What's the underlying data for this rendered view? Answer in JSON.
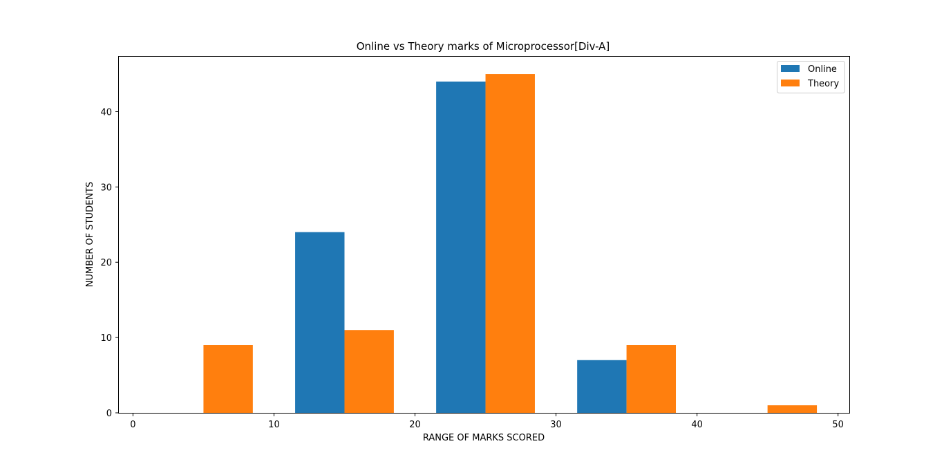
{
  "chart_data": {
    "type": "bar",
    "title": "Online vs Theory marks of Microprocessor[Div-A]",
    "xlabel": "RANGE OF MARKS SCORED",
    "ylabel": "NUMBER OF STUDENTS",
    "xlim": [
      -1,
      50.8
    ],
    "ylim": [
      0,
      47.3
    ],
    "xticks": [
      0,
      10,
      20,
      30,
      40,
      50
    ],
    "yticks": [
      0,
      10,
      20,
      30,
      40
    ],
    "bar_width": 3.5,
    "legend_position": "top-right",
    "series": [
      {
        "name": "Online",
        "color": "#1f77b4",
        "bars": [
          {
            "x": 0,
            "value": 0
          },
          {
            "x": 5,
            "value": 0
          },
          {
            "x": 11.5,
            "value": 24
          },
          {
            "x": 21.5,
            "value": 44
          },
          {
            "x": 31.5,
            "value": 7
          },
          {
            "x": 41.5,
            "value": 0
          }
        ]
      },
      {
        "name": "Theory",
        "color": "#ff7f0e",
        "bars": [
          {
            "x": 5,
            "value": 9
          },
          {
            "x": 15,
            "value": 11
          },
          {
            "x": 25,
            "value": 45
          },
          {
            "x": 35,
            "value": 9
          },
          {
            "x": 45,
            "value": 1
          }
        ]
      }
    ]
  }
}
